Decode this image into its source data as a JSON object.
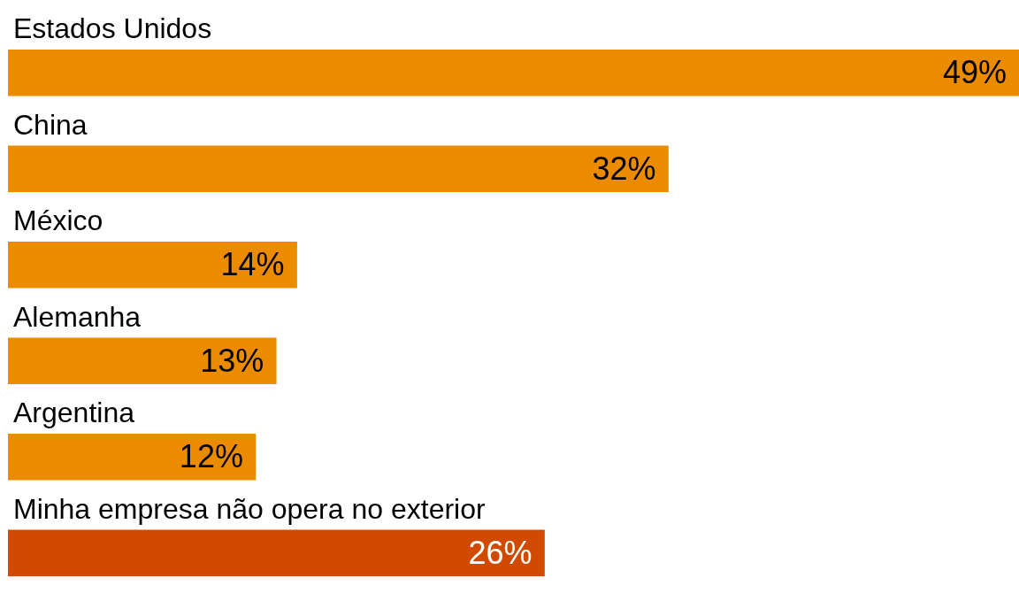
{
  "chart_data": {
    "type": "bar",
    "orientation": "horizontal",
    "categories": [
      "Estados Unidos",
      "China",
      "México",
      "Alemanha",
      "Argentina",
      "Minha empresa não opera no exterior"
    ],
    "values": [
      49,
      32,
      14,
      13,
      12,
      26
    ],
    "value_labels": [
      "49%",
      "32%",
      "14%",
      "13%",
      "12%",
      "26%"
    ],
    "colors": [
      "#eb8c00",
      "#eb8c00",
      "#eb8c00",
      "#eb8c00",
      "#eb8c00",
      "#d04a02"
    ]
  }
}
